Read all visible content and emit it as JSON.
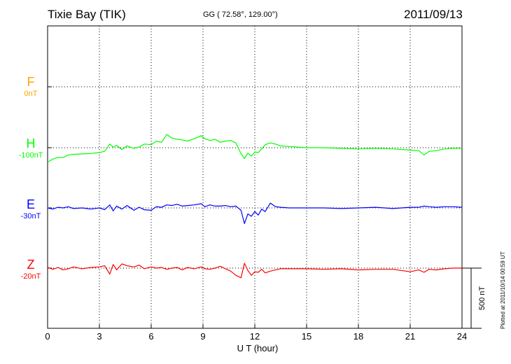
{
  "header": {
    "station": "Tixie Bay (TIK)",
    "coords": "GG ( 72.58°, 129.00°)",
    "date": "2011/09/13"
  },
  "footer": {
    "plotted": "Plotted at 2011/10/14 00:59 UT"
  },
  "colors": {
    "F": "#ffa500",
    "H": "#00ff00",
    "E": "#0000ff",
    "Z": "#ff0000",
    "axis": "#000000"
  },
  "components": [
    {
      "key": "F",
      "letter": "F",
      "base_label": "0nT"
    },
    {
      "key": "H",
      "letter": "H",
      "base_label": "-100nT"
    },
    {
      "key": "E",
      "letter": "E",
      "base_label": "-30nT"
    },
    {
      "key": "Z",
      "letter": "Z",
      "base_label": "-20nT"
    }
  ],
  "chart_data": {
    "type": "line",
    "title": "Tixie Bay (TIK)",
    "xlabel": "U T (hour)",
    "xlim": [
      0,
      24
    ],
    "xticks": [
      0,
      3,
      6,
      9,
      12,
      15,
      18,
      21,
      24
    ],
    "scale_bar_label": "500 nT",
    "grid": true,
    "series": [
      {
        "name": "H",
        "x": [
          0,
          0.3,
          0.6,
          0.9,
          1.2,
          1.5,
          2,
          2.5,
          3,
          3.3,
          3.6,
          3.8,
          4,
          4.3,
          4.6,
          5,
          5.3,
          5.6,
          6,
          6.3,
          6.6,
          6.9,
          7.2,
          7.5,
          7.8,
          8.1,
          8.5,
          8.9,
          9.1,
          9.4,
          9.7,
          10,
          10.3,
          10.6,
          10.9,
          11.2,
          11.4,
          11.6,
          11.8,
          12,
          12.2,
          12.4,
          12.6,
          12.9,
          13.2,
          13.5,
          14,
          15,
          16,
          17,
          18,
          19,
          20,
          21,
          21.5,
          21.8,
          22.1,
          22.5,
          23,
          23.5,
          24
        ],
        "values": [
          -120,
          -95,
          -80,
          -82,
          -60,
          -55,
          -52,
          -48,
          -40,
          -30,
          30,
          5,
          20,
          -15,
          15,
          -5,
          5,
          30,
          25,
          55,
          45,
          110,
          80,
          70,
          65,
          55,
          75,
          100,
          75,
          60,
          70,
          45,
          55,
          60,
          40,
          -50,
          -90,
          -45,
          -70,
          -35,
          -40,
          -10,
          25,
          40,
          30,
          15,
          10,
          0,
          0,
          -5,
          -10,
          -5,
          -10,
          -20,
          -25,
          -60,
          -30,
          -25,
          -10,
          -5,
          -5
        ]
      },
      {
        "name": "E",
        "x": [
          0,
          0.3,
          0.6,
          0.9,
          1.2,
          1.5,
          2,
          2.5,
          3,
          3.3,
          3.6,
          3.8,
          4,
          4.3,
          4.6,
          5,
          5.3,
          5.6,
          6,
          6.3,
          6.6,
          6.9,
          7.2,
          7.5,
          7.8,
          8.1,
          8.5,
          8.9,
          9.1,
          9.4,
          9.7,
          10,
          10.3,
          10.6,
          10.9,
          11.2,
          11.4,
          11.6,
          11.8,
          12,
          12.2,
          12.4,
          12.6,
          12.9,
          13.2,
          13.5,
          14,
          15,
          16,
          17,
          18,
          19,
          20,
          21,
          21.5,
          21.8,
          22.1,
          22.5,
          23,
          23.5,
          24
        ],
        "values": [
          0,
          -10,
          5,
          0,
          10,
          -5,
          0,
          -10,
          0,
          -15,
          25,
          -25,
          15,
          -10,
          20,
          -20,
          5,
          -15,
          -20,
          10,
          5,
          25,
          20,
          30,
          15,
          20,
          25,
          35,
          10,
          25,
          15,
          15,
          20,
          10,
          15,
          -20,
          -130,
          -50,
          -70,
          -30,
          -60,
          -10,
          -30,
          40,
          10,
          5,
          0,
          0,
          0,
          -5,
          0,
          5,
          -5,
          5,
          5,
          15,
          10,
          5,
          10,
          10,
          5
        ]
      },
      {
        "name": "Z",
        "x": [
          0,
          0.3,
          0.6,
          0.9,
          1.2,
          1.5,
          2,
          2.5,
          3,
          3.3,
          3.6,
          3.8,
          4,
          4.3,
          4.6,
          5,
          5.3,
          5.6,
          6,
          6.3,
          6.6,
          6.9,
          7.2,
          7.5,
          7.8,
          8.1,
          8.5,
          8.9,
          9.1,
          9.4,
          9.7,
          10,
          10.3,
          10.6,
          10.9,
          11.2,
          11.4,
          11.6,
          11.8,
          12,
          12.2,
          12.4,
          12.6,
          12.9,
          13.2,
          13.5,
          14,
          15,
          16,
          17,
          18,
          19,
          20,
          21,
          21.5,
          21.8,
          22.1,
          22.5,
          23,
          23.5,
          24
        ],
        "values": [
          5,
          -10,
          5,
          -15,
          -5,
          10,
          -5,
          5,
          10,
          20,
          -50,
          30,
          -15,
          35,
          20,
          10,
          25,
          -5,
          10,
          0,
          5,
          -10,
          0,
          5,
          -15,
          5,
          -5,
          10,
          -5,
          -10,
          0,
          15,
          -5,
          -25,
          -60,
          -80,
          40,
          -20,
          -60,
          -30,
          -35,
          -10,
          -40,
          -25,
          -15,
          -5,
          -5,
          -5,
          -10,
          -5,
          -15,
          -10,
          -10,
          -30,
          -15,
          -35,
          -10,
          -15,
          -5,
          0,
          0
        ]
      }
    ]
  }
}
